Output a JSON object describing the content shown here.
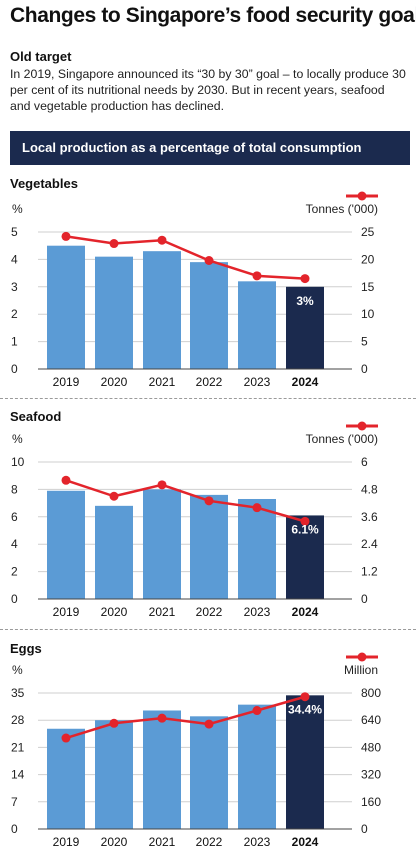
{
  "header": {
    "title": "Changes to Singapore’s food security goal",
    "subheading": "Old target",
    "intro": "In 2019, Singapore announced its “30 by 30” goal – to locally produce 30 per cent of its nutritional needs by 2030. But in recent years, seafood and vegetable production has declined.",
    "banner": "Local production as a percentage of total consumption"
  },
  "colors": {
    "bar": "#5b9bd5",
    "bar_highlight": "#1b2a4e",
    "line": "#e3242b",
    "banner_bg": "#1b2a4e"
  },
  "chart_data": [
    {
      "type": "bar",
      "title": "Vegetables",
      "categories": [
        "2019",
        "2020",
        "2021",
        "2022",
        "2023",
        "2024"
      ],
      "ylabel": "%",
      "ylim": [
        0,
        5
      ],
      "yticks": [
        0,
        1,
        2,
        3,
        4,
        5
      ],
      "series": [
        {
          "values": [
            4.5,
            4.1,
            4.3,
            3.9,
            3.2,
            3.0
          ]
        }
      ],
      "line_series": {
        "name": "Tonnes ('000)",
        "axis": "right",
        "ylim": [
          0,
          25
        ],
        "yticks": [
          0,
          5,
          10,
          15,
          20,
          25
        ],
        "values": [
          24.2,
          22.9,
          23.5,
          19.8,
          17.0,
          16.5
        ]
      },
      "highlight_label": "3%"
    },
    {
      "type": "bar",
      "title": "Seafood",
      "categories": [
        "2019",
        "2020",
        "2021",
        "2022",
        "2023",
        "2024"
      ],
      "ylabel": "%",
      "ylim": [
        0,
        10
      ],
      "yticks": [
        0,
        2,
        4,
        6,
        8,
        10
      ],
      "series": [
        {
          "values": [
            7.9,
            6.8,
            8.0,
            7.6,
            7.3,
            6.1
          ]
        }
      ],
      "line_series": {
        "name": "Tonnes ('000)",
        "axis": "right",
        "ylim": [
          0,
          6
        ],
        "yticks": [
          "0",
          "1.2",
          "2.4",
          "3.6",
          "4.8",
          "6"
        ],
        "values": [
          5.2,
          4.5,
          5.0,
          4.3,
          4.0,
          3.4
        ]
      },
      "highlight_label": "6.1%"
    },
    {
      "type": "bar",
      "title": "Eggs",
      "categories": [
        "2019",
        "2020",
        "2021",
        "2022",
        "2023",
        "2024"
      ],
      "ylabel": "%",
      "ylim": [
        0,
        35
      ],
      "yticks": [
        0,
        7,
        14,
        21,
        28,
        35
      ],
      "series": [
        {
          "values": [
            25.8,
            28.0,
            30.5,
            29.0,
            32.0,
            34.4
          ]
        }
      ],
      "line_series": {
        "name": "Million",
        "axis": "right",
        "ylim": [
          0,
          800
        ],
        "yticks": [
          0,
          160,
          320,
          480,
          640,
          800
        ],
        "values": [
          535,
          622,
          652,
          617,
          697,
          778
        ]
      },
      "highlight_label": "34.4%"
    }
  ]
}
